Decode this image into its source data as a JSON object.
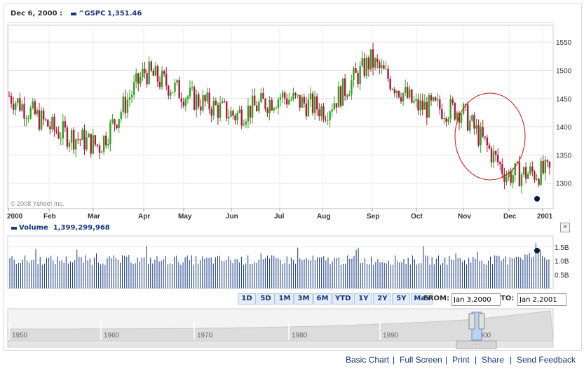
{
  "header": {
    "date": "Dec 6, 2000 :",
    "symbol": "^GSPC",
    "value": "1,351.46"
  },
  "watermark": "© 2008 Yahoo! Inc.",
  "price_axis": {
    "ticks": [
      "1550",
      "1500",
      "1450",
      "1400",
      "1350",
      "1300"
    ]
  },
  "month_axis": {
    "labels": [
      "2000",
      "Feb",
      "Mar",
      "Apr",
      "May",
      "Jun",
      "Jul",
      "Aug",
      "Sep",
      "Oct",
      "Nov",
      "Dec",
      "2001"
    ]
  },
  "volume": {
    "label": "Volume",
    "value": "1,399,299,968",
    "ticks": [
      "1.5B",
      "1.0B",
      "0.5B"
    ]
  },
  "volume_close": "×",
  "range_buttons": [
    "1D",
    "5D",
    "1M",
    "3M",
    "6M",
    "YTD",
    "1Y",
    "2Y",
    "5Y",
    "Max"
  ],
  "from": {
    "label": "FROM:",
    "value": "Jan 3,2000"
  },
  "to": {
    "label": "TO:",
    "value": "Jan 2,2001"
  },
  "overview": {
    "decades": [
      "1950",
      "1960",
      "1970",
      "1980",
      "1990",
      "2000"
    ]
  },
  "footer": {
    "links": [
      "Basic Chart",
      "Full Screen",
      "Print",
      "Share",
      "Send Feedback"
    ]
  },
  "colors": {
    "up": "#2fa21f",
    "down": "#b0173b",
    "accent": "#14377d",
    "marker": "#0a1a3c",
    "annotation": "#cc1111"
  },
  "chart_data": {
    "type": "candlestick",
    "title": "^GSPC",
    "x": {
      "start": "2000-01-03",
      "end": "2001-01-02"
    },
    "ylim": [
      1255,
      1580
    ],
    "monthly_close": [
      {
        "month": "2000-01",
        "close": 1394
      },
      {
        "month": "2000-02",
        "close": 1366
      },
      {
        "month": "2000-03",
        "close": 1498
      },
      {
        "month": "2000-04",
        "close": 1452
      },
      {
        "month": "2000-05",
        "close": 1420
      },
      {
        "month": "2000-06",
        "close": 1454
      },
      {
        "month": "2000-07",
        "close": 1430
      },
      {
        "month": "2000-08",
        "close": 1517
      },
      {
        "month": "2000-09",
        "close": 1436
      },
      {
        "month": "2000-10",
        "close": 1429
      },
      {
        "month": "2000-11",
        "close": 1315
      },
      {
        "month": "2000-12",
        "close": 1320
      }
    ],
    "volume_ylim": [
      0,
      1.9
    ],
    "volume_typical_billion": 1.0,
    "volume_unit": "B",
    "annotation": "red ellipse around November decline",
    "grid": true
  }
}
